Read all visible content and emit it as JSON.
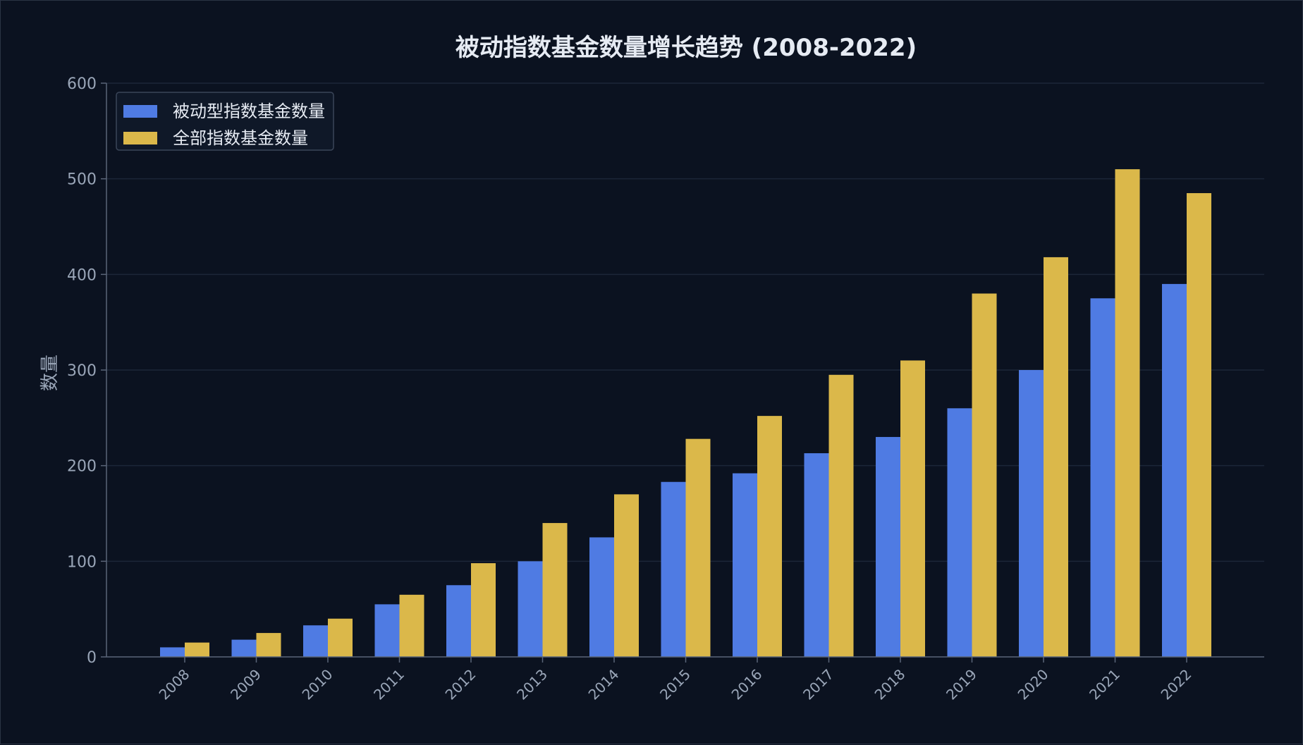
{
  "chart_data": {
    "type": "bar",
    "title": "被动指数基金数量增长趋势 (2008-2022)",
    "xlabel": "",
    "ylabel": "数量",
    "ylim": [
      0,
      600
    ],
    "yticks": [
      0,
      100,
      200,
      300,
      400,
      500,
      600
    ],
    "grid": true,
    "legend_position": "top-left",
    "categories": [
      "2008",
      "2009",
      "2010",
      "2011",
      "2012",
      "2013",
      "2014",
      "2015",
      "2016",
      "2017",
      "2018",
      "2019",
      "2020",
      "2021",
      "2022"
    ],
    "series": [
      {
        "name": "被动型指数基金数量",
        "color": "#4f7be3",
        "values": [
          10,
          18,
          33,
          55,
          75,
          100,
          125,
          183,
          192,
          213,
          230,
          260,
          300,
          375,
          390
        ]
      },
      {
        "name": "全部指数基金数量",
        "color": "#dbb84a",
        "values": [
          15,
          25,
          40,
          65,
          98,
          140,
          170,
          228,
          252,
          295,
          310,
          380,
          418,
          510,
          485
        ]
      }
    ]
  },
  "colors": {
    "background": "#0b1220",
    "grid": "#1c2638",
    "axis": "#5a6578"
  }
}
